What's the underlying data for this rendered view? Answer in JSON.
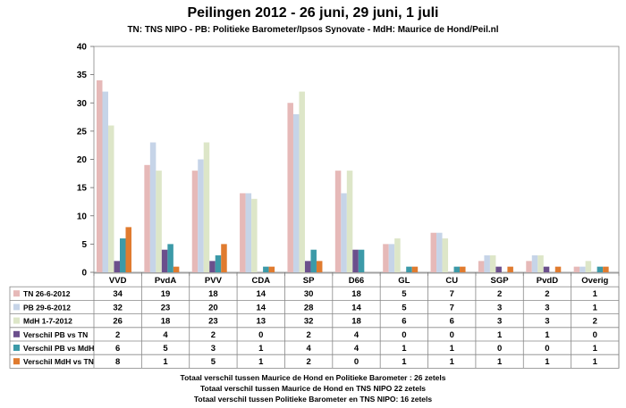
{
  "chart_data": {
    "type": "bar",
    "title": "Peilingen 2012 - 26 juni, 29 juni, 1 juli",
    "subtitle": "TN: TNS NIPO - PB: Politieke Barometer/Ipsos Synovate - MdH: Maurice de Hond/Peil.nl",
    "categories": [
      "VVD",
      "PvdA",
      "PVV",
      "CDA",
      "SP",
      "D66",
      "GL",
      "CU",
      "SGP",
      "PvdD",
      "Overig"
    ],
    "ylim": [
      0,
      40
    ],
    "yticks": [
      0,
      5,
      10,
      15,
      20,
      25,
      30,
      35,
      40
    ],
    "grid": false,
    "legend": "table-below",
    "series": [
      {
        "name": "TN 26-6-2012",
        "color": "#e6b9b8",
        "values": [
          34,
          19,
          18,
          14,
          30,
          18,
          5,
          7,
          2,
          2,
          1
        ]
      },
      {
        "name": "PB 29-6-2012",
        "color": "#c6d4e8",
        "values": [
          32,
          23,
          20,
          14,
          28,
          14,
          5,
          7,
          3,
          3,
          1
        ]
      },
      {
        "name": "MdH 1-7-2012",
        "color": "#dde6c8",
        "values": [
          26,
          18,
          23,
          13,
          32,
          18,
          6,
          6,
          3,
          3,
          2
        ]
      },
      {
        "name": "Verschil PB vs TN",
        "color": "#6b4f8c",
        "values": [
          2,
          4,
          2,
          0,
          2,
          4,
          0,
          0,
          1,
          1,
          0
        ]
      },
      {
        "name": "Verschil PB vs MdH",
        "color": "#3c9aa8",
        "values": [
          6,
          5,
          3,
          1,
          4,
          4,
          1,
          1,
          0,
          0,
          1
        ]
      },
      {
        "name": "Verschil MdH vs TN",
        "color": "#e07b2f",
        "values": [
          8,
          1,
          5,
          1,
          2,
          0,
          1,
          1,
          1,
          1,
          1
        ]
      }
    ]
  },
  "footer": [
    "Totaal  verschil tussen Maurice de Hond en Politieke Barometer : 26 zetels",
    "Totaal  verschil tussen Maurice de Hond en TNS NIPO  22 zetels",
    "Totaal  verschil tussen Politieke Barometer en TNS NIPO: 16 zetels"
  ]
}
